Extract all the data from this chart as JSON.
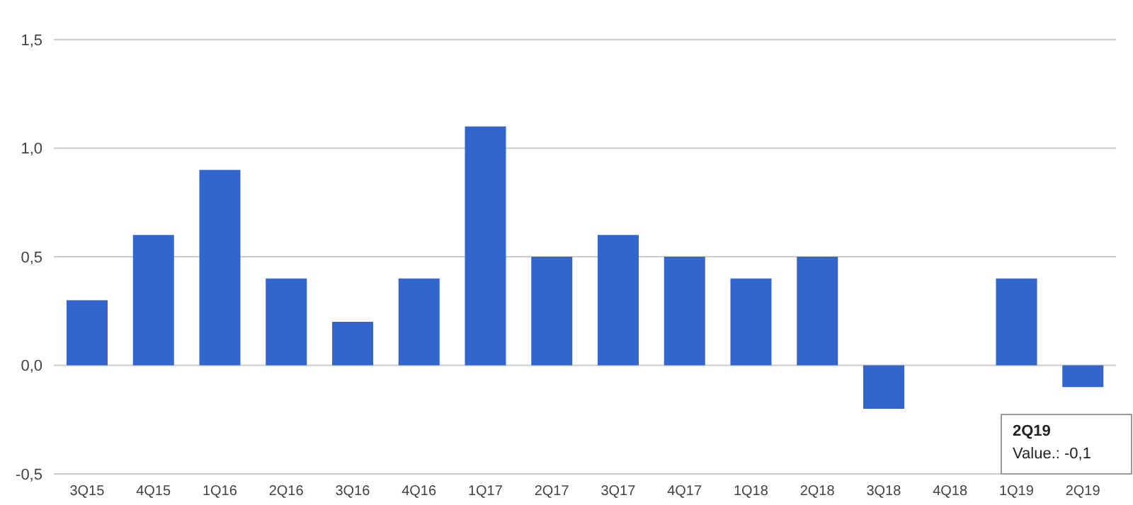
{
  "chart_data": {
    "type": "bar",
    "categories": [
      "3Q15",
      "4Q15",
      "1Q16",
      "2Q16",
      "3Q16",
      "4Q16",
      "1Q17",
      "2Q17",
      "3Q17",
      "4Q17",
      "1Q18",
      "2Q18",
      "3Q18",
      "4Q18",
      "1Q19",
      "2Q19"
    ],
    "values": [
      0.3,
      0.6,
      0.9,
      0.4,
      0.2,
      0.4,
      1.1,
      0.5,
      0.6,
      0.5,
      0.4,
      0.5,
      -0.2,
      0,
      0.4,
      -0.1
    ],
    "color": "#3366cc",
    "ylim": [
      -0.5,
      1.5
    ],
    "yticks": [
      {
        "value": -0.5,
        "label": "-0,5"
      },
      {
        "value": 0,
        "label": "0,0"
      },
      {
        "value": 0.5,
        "label": "0,5"
      },
      {
        "value": 1,
        "label": "1,0"
      },
      {
        "value": 1.5,
        "label": "1,5"
      }
    ],
    "grid": "y",
    "annotations": [
      "2Q19",
      "Value.: -0,1"
    ]
  }
}
